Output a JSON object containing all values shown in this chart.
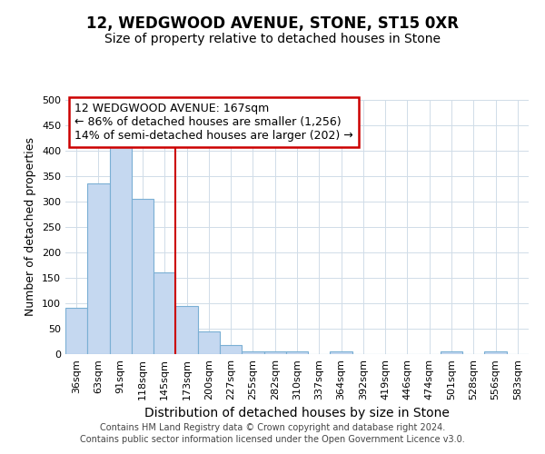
{
  "title": "12, WEDGWOOD AVENUE, STONE, ST15 0XR",
  "subtitle": "Size of property relative to detached houses in Stone",
  "xlabel": "Distribution of detached houses by size in Stone",
  "ylabel": "Number of detached properties",
  "bar_color": "#c5d8f0",
  "bar_edge_color": "#7aafd4",
  "background_color": "#ffffff",
  "plot_bg_color": "#ffffff",
  "grid_color": "#d0dce8",
  "categories": [
    "36sqm",
    "63sqm",
    "91sqm",
    "118sqm",
    "145sqm",
    "173sqm",
    "200sqm",
    "227sqm",
    "255sqm",
    "282sqm",
    "310sqm",
    "337sqm",
    "364sqm",
    "392sqm",
    "419sqm",
    "446sqm",
    "474sqm",
    "501sqm",
    "528sqm",
    "556sqm",
    "583sqm"
  ],
  "values": [
    91,
    336,
    410,
    305,
    160,
    95,
    45,
    18,
    5,
    5,
    5,
    0,
    5,
    0,
    0,
    0,
    0,
    5,
    0,
    5,
    0
  ],
  "property_bar_index": 5,
  "annotation_title": "12 WEDGWOOD AVENUE: 167sqm",
  "annotation_line1": "← 86% of detached houses are smaller (1,256)",
  "annotation_line2": "14% of semi-detached houses are larger (202) →",
  "vline_color": "#cc0000",
  "annotation_box_color": "#ffffff",
  "annotation_border_color": "#cc0000",
  "footer_line1": "Contains HM Land Registry data © Crown copyright and database right 2024.",
  "footer_line2": "Contains public sector information licensed under the Open Government Licence v3.0.",
  "ylim": [
    0,
    500
  ],
  "yticks": [
    0,
    50,
    100,
    150,
    200,
    250,
    300,
    350,
    400,
    450,
    500
  ],
  "title_fontsize": 12,
  "subtitle_fontsize": 10,
  "xlabel_fontsize": 10,
  "ylabel_fontsize": 9,
  "tick_fontsize": 8,
  "annotation_fontsize": 9,
  "footer_fontsize": 7
}
